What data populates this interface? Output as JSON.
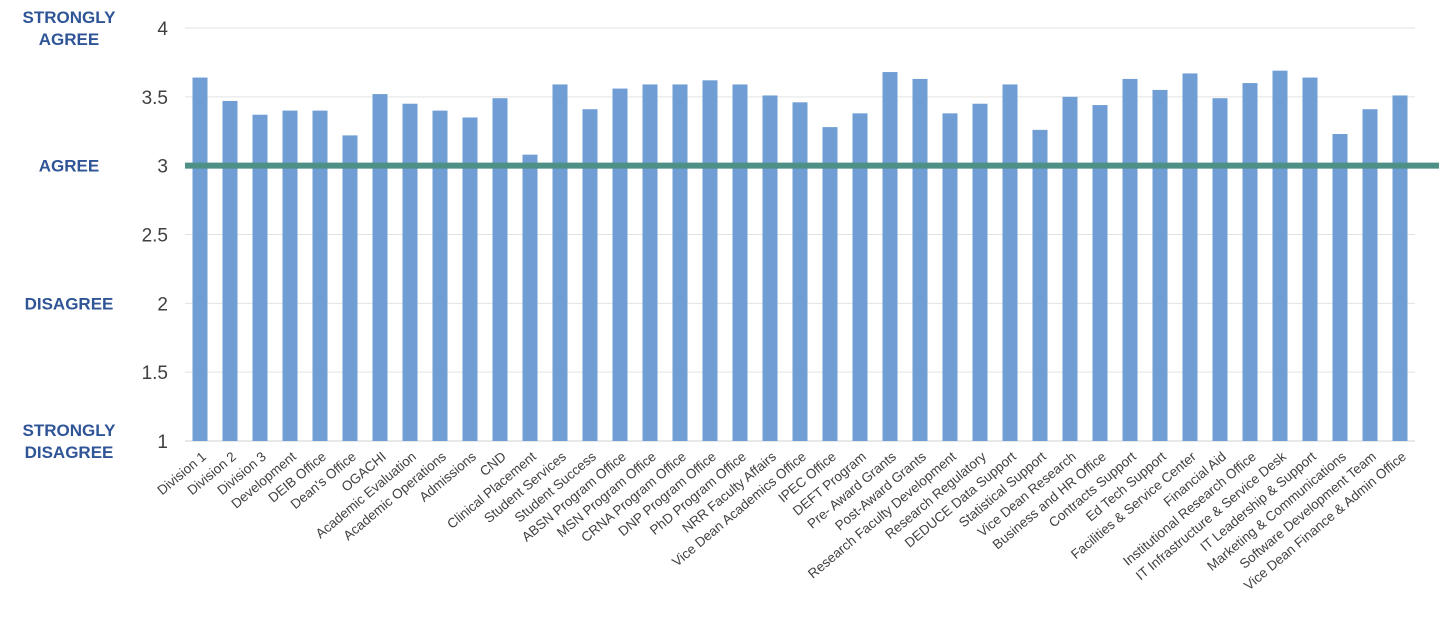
{
  "chart_data": {
    "type": "bar",
    "title": "",
    "xlabel": "",
    "ylabel": "",
    "ylim": [
      1,
      4
    ],
    "y_ticks": [
      "1",
      "1.5",
      "2",
      "2.5",
      "3",
      "3.5",
      "4"
    ],
    "y_tick_values": [
      1,
      1.5,
      2,
      2.5,
      3,
      3.5,
      4
    ],
    "scale_labels": [
      {
        "lines": [
          "STRONGLY",
          "AGREE"
        ],
        "value": 4
      },
      {
        "lines": [
          "AGREE"
        ],
        "value": 3
      },
      {
        "lines": [
          "DISAGREE"
        ],
        "value": 2
      },
      {
        "lines": [
          "STRONGLY",
          "DISAGREE"
        ],
        "value": 1
      }
    ],
    "reference_line": {
      "value": 3,
      "color": "#4e8f86"
    },
    "bar_color": "#6f9dd4",
    "categories": [
      "Division 1",
      "Division 2",
      "Division 3",
      "Development",
      "DEIB Office",
      "Dean's Office",
      "OGACHI",
      "Academic Evaluation",
      "Academic Operations",
      "Admissions",
      "CND",
      "Clinical Placement",
      "Student Services",
      "Student Success",
      "ABSN Program Office",
      "MSN Program Office",
      "CRNA Program Office",
      "DNP Program Office",
      "PhD Program Office",
      "NRR Faculty Affairs",
      "Vice Dean Academics Office",
      "IPEC Office",
      "DEFT Program",
      "Pre- Award Grants",
      "Post-Award Grants",
      "Research Faculty Development",
      "Research Regulatory",
      "DEDUCE Data Support",
      "Statistical Support",
      "Vice Dean Research",
      "Business and HR Office",
      "Contracts Support",
      "Ed Tech Support",
      "Facilities & Service Center",
      "Financial Aid",
      "Institutional Research Office",
      "IT Infrastructure & Service Desk",
      "IT Leadership & Support",
      "Marketing & Communications",
      "Software Development Team",
      "Vice Dean Finance & Admin Office"
    ],
    "values": [
      3.64,
      3.47,
      3.37,
      3.4,
      3.4,
      3.22,
      3.52,
      3.45,
      3.4,
      3.35,
      3.49,
      3.08,
      3.59,
      3.41,
      3.56,
      3.59,
      3.59,
      3.62,
      3.59,
      3.51,
      3.46,
      3.28,
      3.38,
      3.68,
      3.63,
      3.38,
      3.45,
      3.59,
      3.26,
      3.5,
      3.44,
      3.63,
      3.55,
      3.67,
      3.49,
      3.6,
      3.69,
      3.64,
      3.23,
      3.41,
      3.51
    ]
  }
}
